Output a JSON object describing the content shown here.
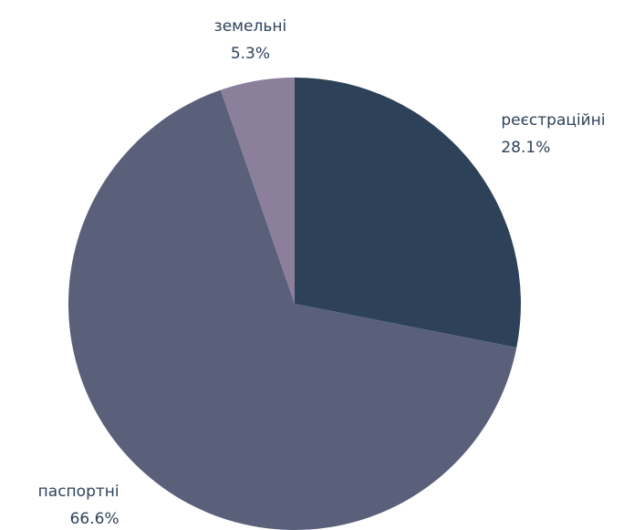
{
  "chart_data": {
    "type": "pie",
    "categories": [
      "реєстраційні",
      "паспортні",
      "земельні"
    ],
    "values": [
      28.1,
      66.6,
      5.3
    ],
    "value_labels": [
      "28.1%",
      "66.6%",
      "5.3%"
    ],
    "colors": [
      "#2d4259",
      "#5a607a",
      "#8b7f9c"
    ]
  }
}
